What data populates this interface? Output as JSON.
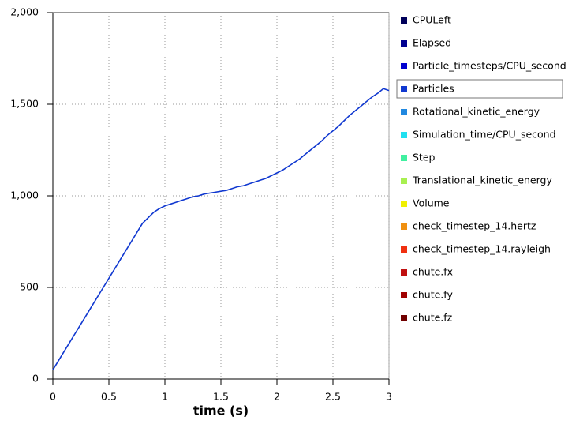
{
  "chart_data": {
    "type": "line",
    "xlabel": "time (s)",
    "xlim": [
      0,
      3
    ],
    "xticks": [
      0,
      0.5,
      1,
      1.5,
      2,
      2.5,
      3
    ],
    "ylim": [
      0,
      2000
    ],
    "yticks": [
      0,
      500,
      {
        "value": 1000,
        "label": "1,000"
      },
      {
        "value": 1500,
        "label": "1,500"
      },
      {
        "value": 2000,
        "label": "2,000"
      }
    ],
    "grid": true,
    "x": [
      0,
      0.05,
      0.1,
      0.15,
      0.2,
      0.25,
      0.3,
      0.35,
      0.4,
      0.45,
      0.5,
      0.55,
      0.6,
      0.65,
      0.7,
      0.75,
      0.8,
      0.85,
      0.9,
      0.95,
      1,
      1.05,
      1.1,
      1.15,
      1.2,
      1.25,
      1.3,
      1.35,
      1.4,
      1.45,
      1.5,
      1.55,
      1.6,
      1.65,
      1.7,
      1.75,
      1.8,
      1.85,
      1.9,
      1.95,
      2,
      2.05,
      2.1,
      2.15,
      2.2,
      2.25,
      2.3,
      2.35,
      2.4,
      2.45,
      2.5,
      2.55,
      2.6,
      2.65,
      2.7,
      2.75,
      2.8,
      2.85,
      2.9,
      2.95,
      3
    ],
    "series": [
      {
        "name": "Particles",
        "color": "#1038d0",
        "values": [
          50,
          100,
          150,
          200,
          250,
          300,
          350,
          400,
          450,
          500,
          550,
          600,
          650,
          700,
          750,
          800,
          850,
          880,
          910,
          930,
          945,
          955,
          965,
          975,
          985,
          995,
          1000,
          1010,
          1015,
          1020,
          1025,
          1030,
          1040,
          1050,
          1055,
          1065,
          1075,
          1085,
          1095,
          1110,
          1125,
          1140,
          1160,
          1180,
          1200,
          1225,
          1250,
          1275,
          1300,
          1330,
          1355,
          1380,
          1410,
          1440,
          1465,
          1490,
          1515,
          1540,
          1560,
          1585,
          1575
        ]
      }
    ],
    "legend": [
      {
        "name": "CPULeft",
        "color": "#00005a"
      },
      {
        "name": "Elapsed",
        "color": "#000090"
      },
      {
        "name": "Particle_timesteps/CPU_second",
        "color": "#0000d0"
      },
      {
        "name": "Particles",
        "color": "#1038d0",
        "selected": true
      },
      {
        "name": "Rotational_kinetic_energy",
        "color": "#2088e0"
      },
      {
        "name": "Simulation_time/CPU_second",
        "color": "#20e0f0"
      },
      {
        "name": "Step",
        "color": "#40f0a0"
      },
      {
        "name": "Translational_kinetic_energy",
        "color": "#a8f050"
      },
      {
        "name": "Volume",
        "color": "#f0f000"
      },
      {
        "name": "check_timestep_14.hertz",
        "color": "#f09010"
      },
      {
        "name": "check_timestep_14.rayleigh",
        "color": "#f03010"
      },
      {
        "name": "chute.fx",
        "color": "#c01010"
      },
      {
        "name": "chute.fy",
        "color": "#a00000"
      },
      {
        "name": "chute.fz",
        "color": "#700000"
      }
    ]
  }
}
